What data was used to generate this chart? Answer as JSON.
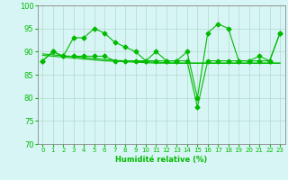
{
  "x": [
    0,
    1,
    2,
    3,
    4,
    5,
    6,
    7,
    8,
    9,
    10,
    11,
    12,
    13,
    14,
    15,
    16,
    17,
    18,
    19,
    20,
    21,
    22,
    23
  ],
  "line1": [
    88,
    90,
    89,
    93,
    93,
    95,
    94,
    92,
    91,
    90,
    88,
    90,
    88,
    88,
    90,
    80,
    94,
    96,
    95,
    88,
    88,
    89,
    88,
    94
  ],
  "line2": [
    88,
    90,
    89,
    89,
    89,
    89,
    89,
    88,
    88,
    88,
    88,
    88,
    88,
    88,
    88,
    78,
    88,
    88,
    88,
    88,
    88,
    88,
    88,
    94
  ],
  "trend1": [
    89.5,
    89.3,
    89.1,
    88.9,
    88.7,
    88.5,
    88.3,
    88.1,
    88.0,
    87.9,
    87.8,
    87.7,
    87.6,
    87.5,
    87.5,
    87.5,
    87.5,
    87.5,
    87.5,
    87.5,
    87.5,
    87.5,
    87.5,
    87.5
  ],
  "trend2": [
    89.2,
    89.0,
    88.8,
    88.6,
    88.4,
    88.2,
    88.0,
    87.9,
    87.8,
    87.7,
    87.6,
    87.5,
    87.5,
    87.5,
    87.5,
    87.5,
    87.5,
    87.5,
    87.5,
    87.5,
    87.5,
    87.5,
    87.5,
    87.5
  ],
  "ylim": [
    70,
    100
  ],
  "yticks": [
    70,
    75,
    80,
    85,
    90,
    95,
    100
  ],
  "xlabel": "Humidité relative (%)",
  "line_color": "#00bb00",
  "bg_color": "#d8f5f5",
  "grid_color": "#b0d9cc"
}
